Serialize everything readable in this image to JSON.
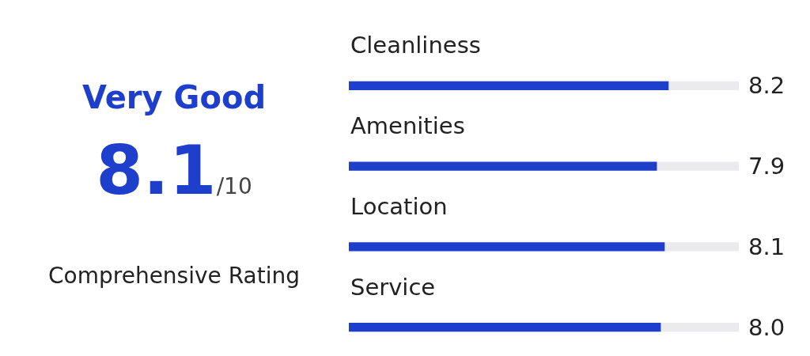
{
  "chart_data": [
    {
      "type": "other",
      "title": "Very Good",
      "annotations": [
        "8.1",
        "/10",
        "Comprehensive Rating"
      ]
    },
    {
      "type": "bar",
      "orientation": "horizontal",
      "categories": [
        "Cleanliness",
        "Amenities",
        "Location",
        "Service"
      ],
      "values": [
        8.2,
        7.9,
        8.1,
        8.0
      ],
      "value_labels": [
        "8.2",
        "7.9",
        "8.1",
        "8.0"
      ],
      "color": "#1d3fcc",
      "xlim": [
        0,
        10
      ],
      "grid": false,
      "legend": false
    }
  ]
}
